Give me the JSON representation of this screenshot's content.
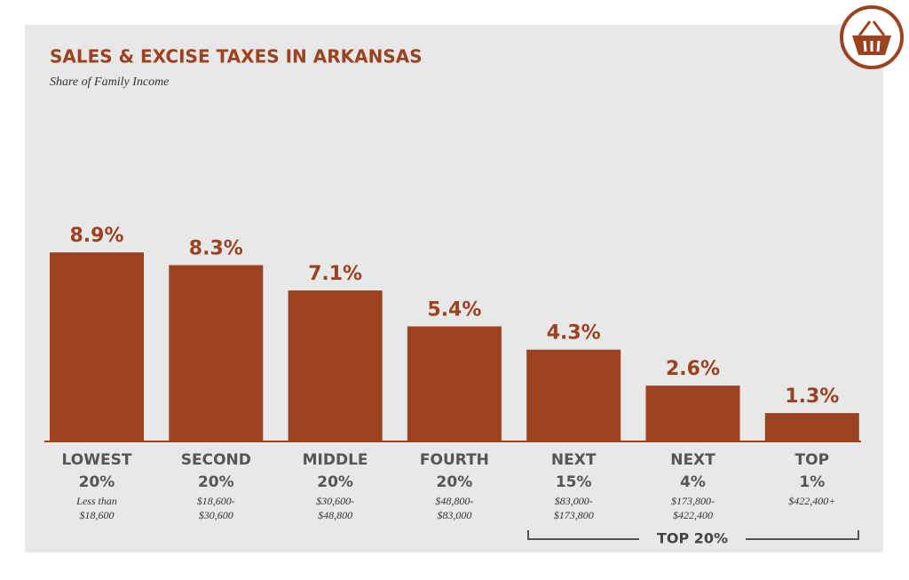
{
  "chart_data": {
    "type": "bar",
    "title": "SALES & EXCISE TAXES IN ARKANSAS",
    "subtitle": "Share of Family Income",
    "categories": [
      [
        "LOWEST",
        "20%"
      ],
      [
        "SECOND",
        "20%"
      ],
      [
        "MIDDLE",
        "20%"
      ],
      [
        "FOURTH",
        "20%"
      ],
      [
        "NEXT",
        "15%"
      ],
      [
        "NEXT",
        "4%"
      ],
      [
        "TOP",
        "1%"
      ]
    ],
    "income_ranges": [
      [
        "Less than",
        "$18,600"
      ],
      [
        "$18,600-",
        "$30,600"
      ],
      [
        "$30,600-",
        "$48,800"
      ],
      [
        "$48,800-",
        "$83,000"
      ],
      [
        "$83,000-",
        "$173,800"
      ],
      [
        "$173,800-",
        "$422,400"
      ],
      [
        "$422,400+"
      ]
    ],
    "values": [
      8.9,
      8.3,
      7.1,
      5.4,
      4.3,
      2.6,
      1.3
    ],
    "value_labels": [
      "8.9%",
      "8.3%",
      "7.1%",
      "5.4%",
      "4.3%",
      "2.6%",
      "1.3%"
    ],
    "color": "#9b4320",
    "group_annotation": "TOP 20%"
  }
}
